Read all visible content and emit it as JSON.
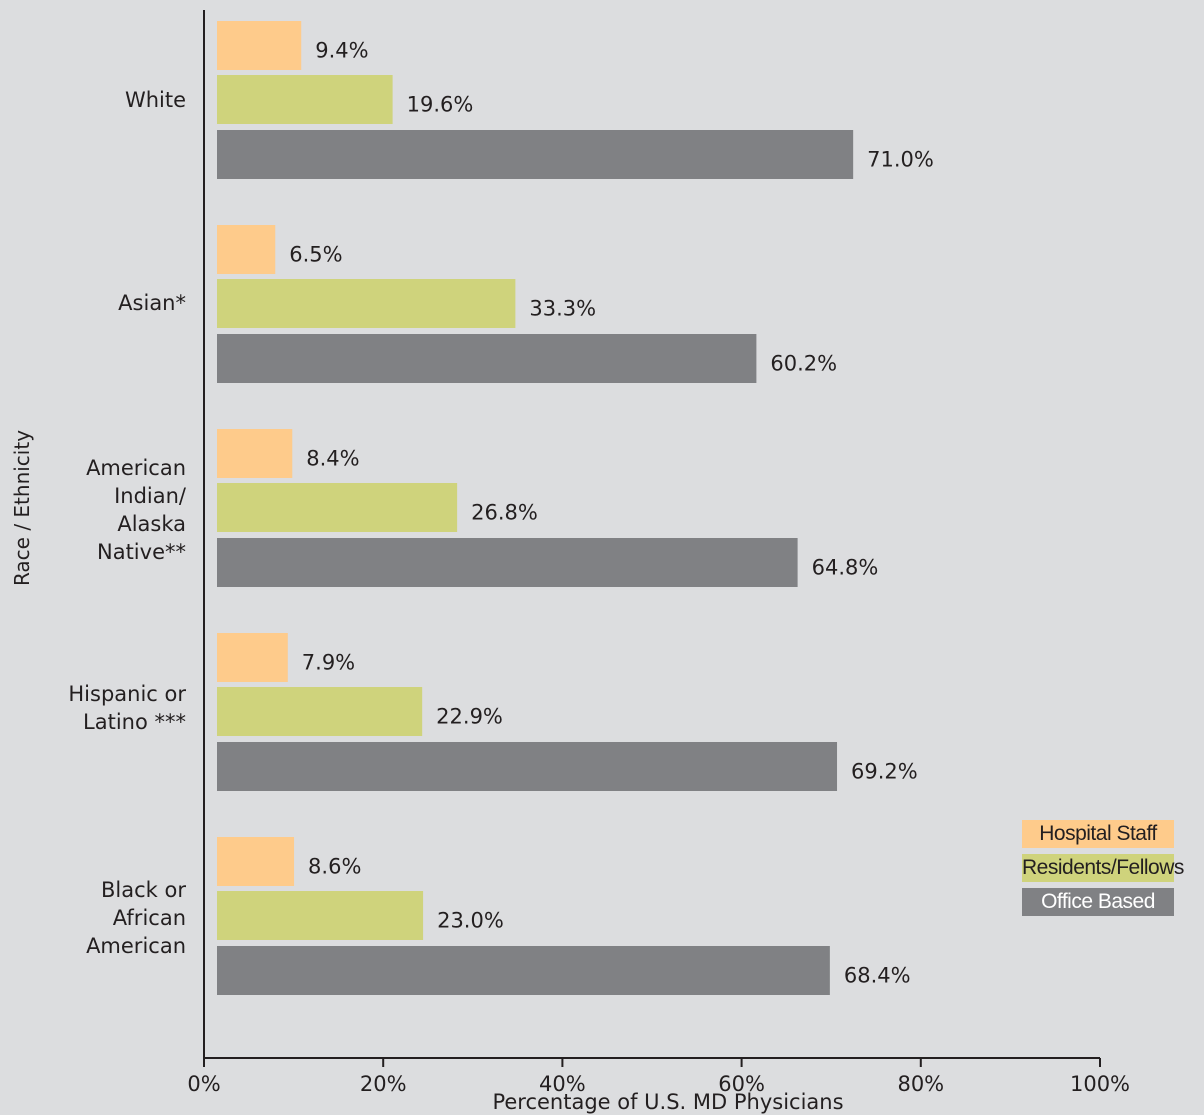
{
  "chart_data": {
    "type": "bar",
    "orientation": "horizontal",
    "categories": [
      "White",
      "Asian*",
      "American\nIndian/\nAlaska\nNative**",
      "Hispanic or\nLatino ***",
      "Black or\nAfrican\nAmerican"
    ],
    "series": [
      {
        "name": "Hospital Staff",
        "color": "#fecb8b",
        "values": [
          9.4,
          6.5,
          8.4,
          7.9,
          8.6
        ],
        "labels": [
          "9.4%",
          "6.5%",
          "8.4%",
          "7.9%",
          "8.6%"
        ]
      },
      {
        "name": "Residents/Fellows",
        "color": "#cfd37c",
        "values": [
          19.6,
          33.3,
          26.8,
          22.9,
          23.0
        ],
        "labels": [
          "19.6%",
          "33.3%",
          "26.8%",
          "22.9%",
          "23.0%"
        ]
      },
      {
        "name": "Office Based",
        "color": "#808184",
        "values": [
          71.0,
          60.2,
          64.8,
          69.2,
          68.4
        ],
        "labels": [
          "71.0%",
          "60.2%",
          "64.8%",
          "69.2%",
          "68.4%"
        ]
      }
    ],
    "xlabel": "Percentage of U.S. MD Physicians",
    "ylabel": "Race / Ethnicity",
    "xlim": [
      0,
      100
    ],
    "xticks": [
      "0%",
      "20%",
      "40%",
      "60%",
      "80%",
      "100%"
    ],
    "grid": false,
    "legend_position": "bottom-right"
  }
}
